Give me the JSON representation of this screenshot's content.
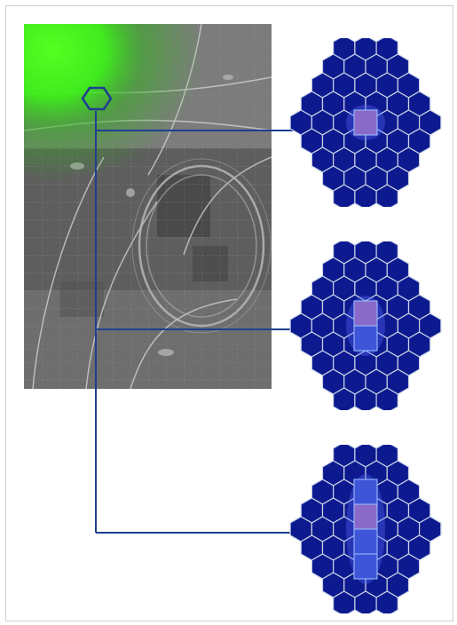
{
  "figure": {
    "caption": "",
    "colors": {
      "background": "#ffffff",
      "hex_fill": "#0d1a8f",
      "hex_stroke": "#c8d2e6",
      "connector": "#1f3f8f",
      "fluorescence": "#3cff14",
      "micrograph": "#6a6a6a"
    }
  },
  "micrograph": {
    "label": "",
    "marker": "hexagon-marker"
  },
  "panels": [
    {
      "name": "hex-array-top",
      "illuminated_elements": 1
    },
    {
      "name": "hex-array-middle",
      "illuminated_elements": 2
    },
    {
      "name": "hex-array-bottom",
      "illuminated_elements": 4
    }
  ]
}
